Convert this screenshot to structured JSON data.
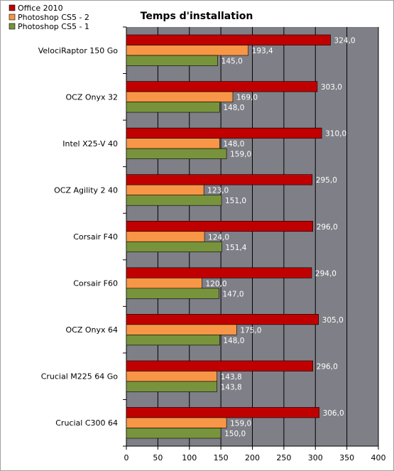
{
  "chart_data": {
    "type": "bar",
    "orientation": "horizontal",
    "title": "Temps d'installation",
    "xlabel": "",
    "ylabel": "",
    "xlim": [
      0,
      400
    ],
    "x_ticks": [
      "0",
      "50",
      "100",
      "150",
      "200",
      "250",
      "300",
      "350",
      "400"
    ],
    "grid": true,
    "legend_position": "top-left",
    "categories": [
      "VelociRaptor 150 Go",
      "OCZ Onyx 32",
      "Intel X25-V 40",
      "OCZ Agility 2 40",
      "Corsair F40",
      "Corsair F60",
      "OCZ Onyx 64",
      "Crucial M225 64 Go",
      "Crucial C300 64"
    ],
    "series": [
      {
        "name": "Office 2010",
        "color": "#c00000",
        "values": [
          324.0,
          303.0,
          310.0,
          295.0,
          296.0,
          294.0,
          305.0,
          296.0,
          306.0
        ],
        "labels": [
          "324,0",
          "303,0",
          "310,0",
          "295,0",
          "296,0",
          "294,0",
          "305,0",
          "296,0",
          "306,0"
        ]
      },
      {
        "name": "Photoshop CS5 - 2",
        "color": "#f79646",
        "values": [
          193.4,
          169.0,
          148.0,
          123.0,
          124.0,
          120.0,
          175.0,
          143.8,
          159.0
        ],
        "labels": [
          "193,4",
          "169,0",
          "148,0",
          "123,0",
          "124,0",
          "120,0",
          "175,0",
          "143,8",
          "159,0"
        ]
      },
      {
        "name": "Photoshop CS5 - 1",
        "color": "#77933c",
        "values": [
          145.0,
          148.0,
          159.0,
          151.0,
          151.4,
          147.0,
          148.0,
          143.8,
          150.0
        ],
        "labels": [
          "145,0",
          "148,0",
          "159,0",
          "151,0",
          "151,4",
          "147,0",
          "148,0",
          "143,8",
          "150,0"
        ]
      }
    ],
    "colors": {
      "plot_background": "#7f7f87",
      "gridline": "#000000",
      "value_label": "#ffffff"
    }
  }
}
